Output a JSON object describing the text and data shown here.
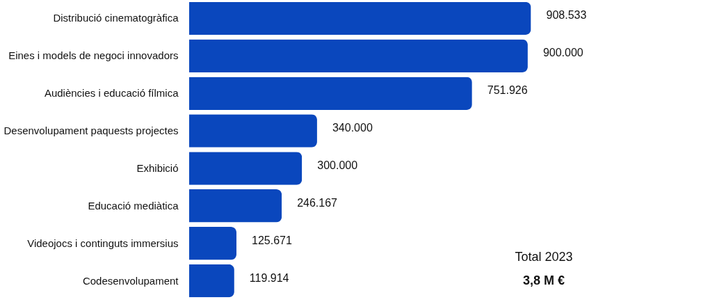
{
  "chart_data": {
    "type": "bar",
    "orientation": "horizontal",
    "categories": [
      "Distribució cinematogràfica",
      "Eines i models de negoci innovadors",
      "Audiències i educació fílmica",
      "Desenvolupament paquests projectes",
      "Exhibició",
      "Educació mediàtica",
      "Videojocs i continguts immersius",
      "Codesenvolupament"
    ],
    "values": [
      908533,
      900000,
      751926,
      340000,
      300000,
      246167,
      125671,
      119914
    ],
    "value_labels": [
      "908.533",
      "900.000",
      "751.926",
      "340.000",
      "300.000",
      "246.167",
      "125.671",
      "119.914"
    ],
    "color": "#0a47bd",
    "grid": false,
    "annotations": [
      "Total 2023",
      "3,8 M €"
    ]
  }
}
